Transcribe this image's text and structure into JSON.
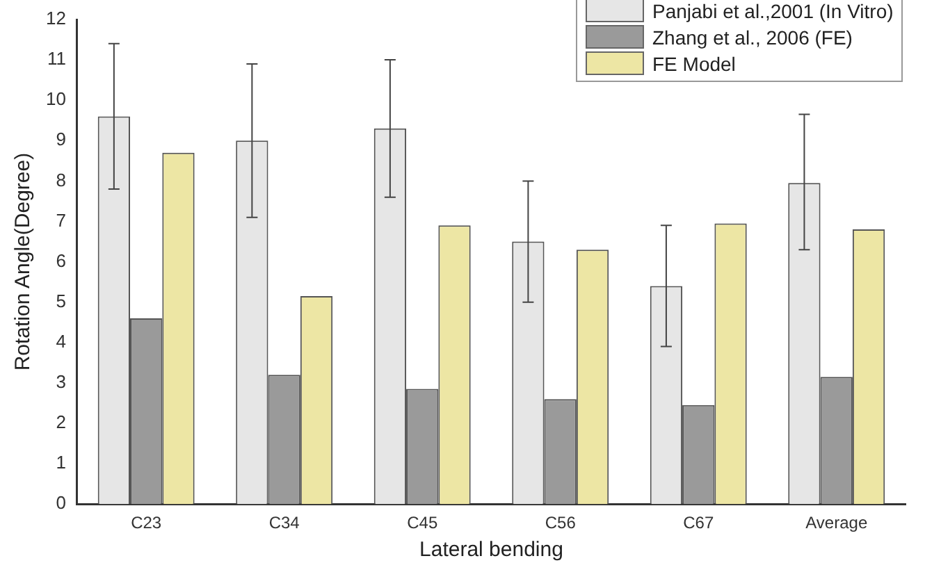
{
  "chart_data": {
    "type": "bar",
    "xlabel": "Lateral bending",
    "ylabel": "Rotation Angle(Degree)",
    "categories": [
      "C23",
      "C34",
      "C45",
      "C56",
      "C67",
      "Average"
    ],
    "series": [
      {
        "name": "Panjabi et al.,2001 (In Vitro)",
        "color": "#e6e6e6",
        "values": [
          9.6,
          9.0,
          9.3,
          6.5,
          5.4,
          7.95
        ],
        "errors": [
          [
            7.8,
            11.4
          ],
          [
            7.1,
            10.9
          ],
          [
            7.6,
            11.0
          ],
          [
            5.0,
            8.0
          ],
          [
            3.9,
            6.9
          ],
          [
            6.3,
            9.65
          ]
        ]
      },
      {
        "name": "Zhang et al., 2006 (FE)",
        "color": "#9a9a9a",
        "values": [
          4.6,
          3.2,
          2.85,
          2.6,
          2.45,
          3.15
        ]
      },
      {
        "name": "FE Model",
        "color": "#ede6a4",
        "values": [
          8.7,
          5.15,
          6.9,
          6.3,
          6.95,
          6.8
        ]
      }
    ],
    "ylim": [
      0,
      12
    ],
    "yticks": [
      0,
      1,
      2,
      3,
      4,
      5,
      6,
      7,
      8,
      9,
      10,
      11,
      12
    ],
    "grid": false,
    "legend": "top right"
  }
}
